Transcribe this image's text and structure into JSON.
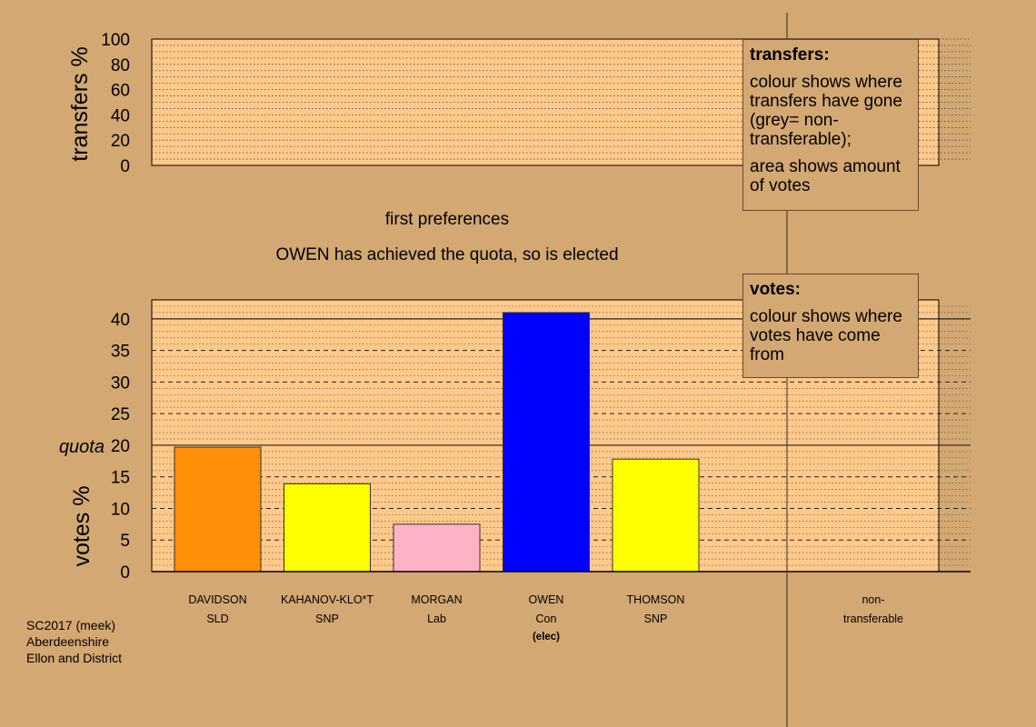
{
  "chart_data": {
    "type": "bar",
    "step_title": "first preferences",
    "status": "OWEN has achieved the quota, so is elected",
    "transfers_panel": {
      "ylabel": "transfers %",
      "ylim": [
        0,
        100
      ],
      "ticks": [
        0,
        20,
        40,
        60,
        80,
        100
      ],
      "values": []
    },
    "votes_panel": {
      "ylabel": "votes %",
      "ylim": [
        0,
        43
      ],
      "ticks": [
        0,
        5,
        10,
        15,
        20,
        25,
        30,
        35,
        40
      ],
      "quota": 20,
      "quota_label": "quota"
    },
    "candidates": [
      {
        "name": "DAVIDSON",
        "party": "SLD",
        "note": "",
        "value": 19.7,
        "color": "#ff9008"
      },
      {
        "name": "KAHANOV-KLO*T",
        "party": "SNP",
        "note": "",
        "value": 13.9,
        "color": "#ffff00"
      },
      {
        "name": "MORGAN",
        "party": "Lab",
        "note": "",
        "value": 7.5,
        "color": "#ffb3c6"
      },
      {
        "name": "OWEN",
        "party": "Con",
        "note": "(elec)",
        "value": 41.0,
        "color": "#0000ff"
      },
      {
        "name": "THOMSON",
        "party": "SNP",
        "note": "",
        "value": 17.8,
        "color": "#ffff00"
      }
    ],
    "nontransferable": {
      "line1": "non-",
      "line2": "transferable"
    },
    "colors": {
      "background": "#d4a872",
      "panel": "#ffc98a",
      "axis": "#000000"
    }
  },
  "legend_transfers": {
    "title": "transfers:",
    "text1": "colour shows where transfers have gone (grey= non-transferable);",
    "text2": "area shows amount of votes"
  },
  "legend_votes": {
    "title": "votes:",
    "text1": "colour shows where votes have come from"
  },
  "footer": {
    "line1": "SC2017 (meek)",
    "line2": "Aberdeenshire",
    "line3": "Ellon and District"
  }
}
